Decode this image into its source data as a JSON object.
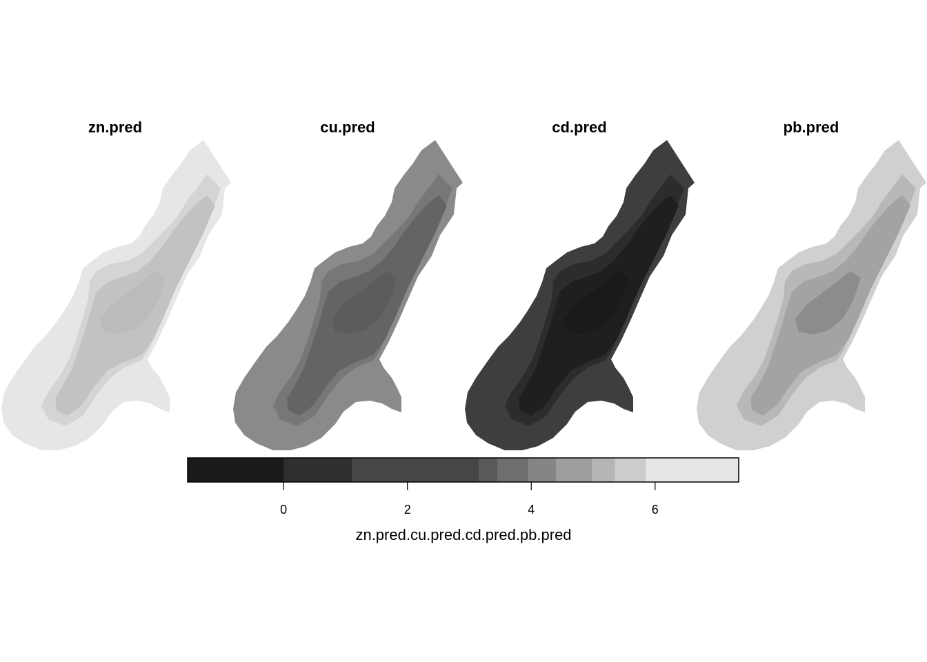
{
  "panels": [
    {
      "id": "zn",
      "title": "zn.pred",
      "outer_fill": "#e6e6e6",
      "zones": [
        {
          "fill": "#d4d4d4"
        },
        {
          "fill": "#c2c2c2"
        },
        {
          "fill": "#bbbbbb"
        }
      ]
    },
    {
      "id": "cu",
      "title": "cu.pred",
      "outer_fill": "#8a8a8a",
      "zones": [
        {
          "fill": "#777777"
        },
        {
          "fill": "#646464"
        },
        {
          "fill": "#5c5c5c"
        }
      ]
    },
    {
      "id": "cd",
      "title": "cd.pred",
      "outer_fill": "#3e3e3e",
      "zones": [
        {
          "fill": "#2c2c2c"
        },
        {
          "fill": "#1f1f1f"
        },
        {
          "fill": "#1a1a1a"
        }
      ]
    },
    {
      "id": "pb",
      "title": "pb.pred",
      "outer_fill": "#d0d0d0",
      "zones": [
        {
          "fill": "#b8b8b8"
        },
        {
          "fill": "#a3a3a3"
        },
        {
          "fill": "#8c8c8c"
        }
      ]
    }
  ],
  "legend": {
    "title": "zn.pred.cu.pred.cd.pred.pb.pred",
    "range": [
      -1.55,
      7.35
    ],
    "breaks": [
      -1.55,
      0.0,
      1.1,
      3.15,
      3.45,
      3.95,
      4.4,
      4.98,
      5.35,
      5.85,
      7.35
    ],
    "colors": [
      "#1a1a1a",
      "#2f2f2f",
      "#464646",
      "#595959",
      "#6e6e6e",
      "#858585",
      "#9e9e9e",
      "#b5b5b5",
      "#cccccc",
      "#e6e6e6"
    ],
    "ticks": [
      0,
      2,
      4,
      6
    ]
  }
}
